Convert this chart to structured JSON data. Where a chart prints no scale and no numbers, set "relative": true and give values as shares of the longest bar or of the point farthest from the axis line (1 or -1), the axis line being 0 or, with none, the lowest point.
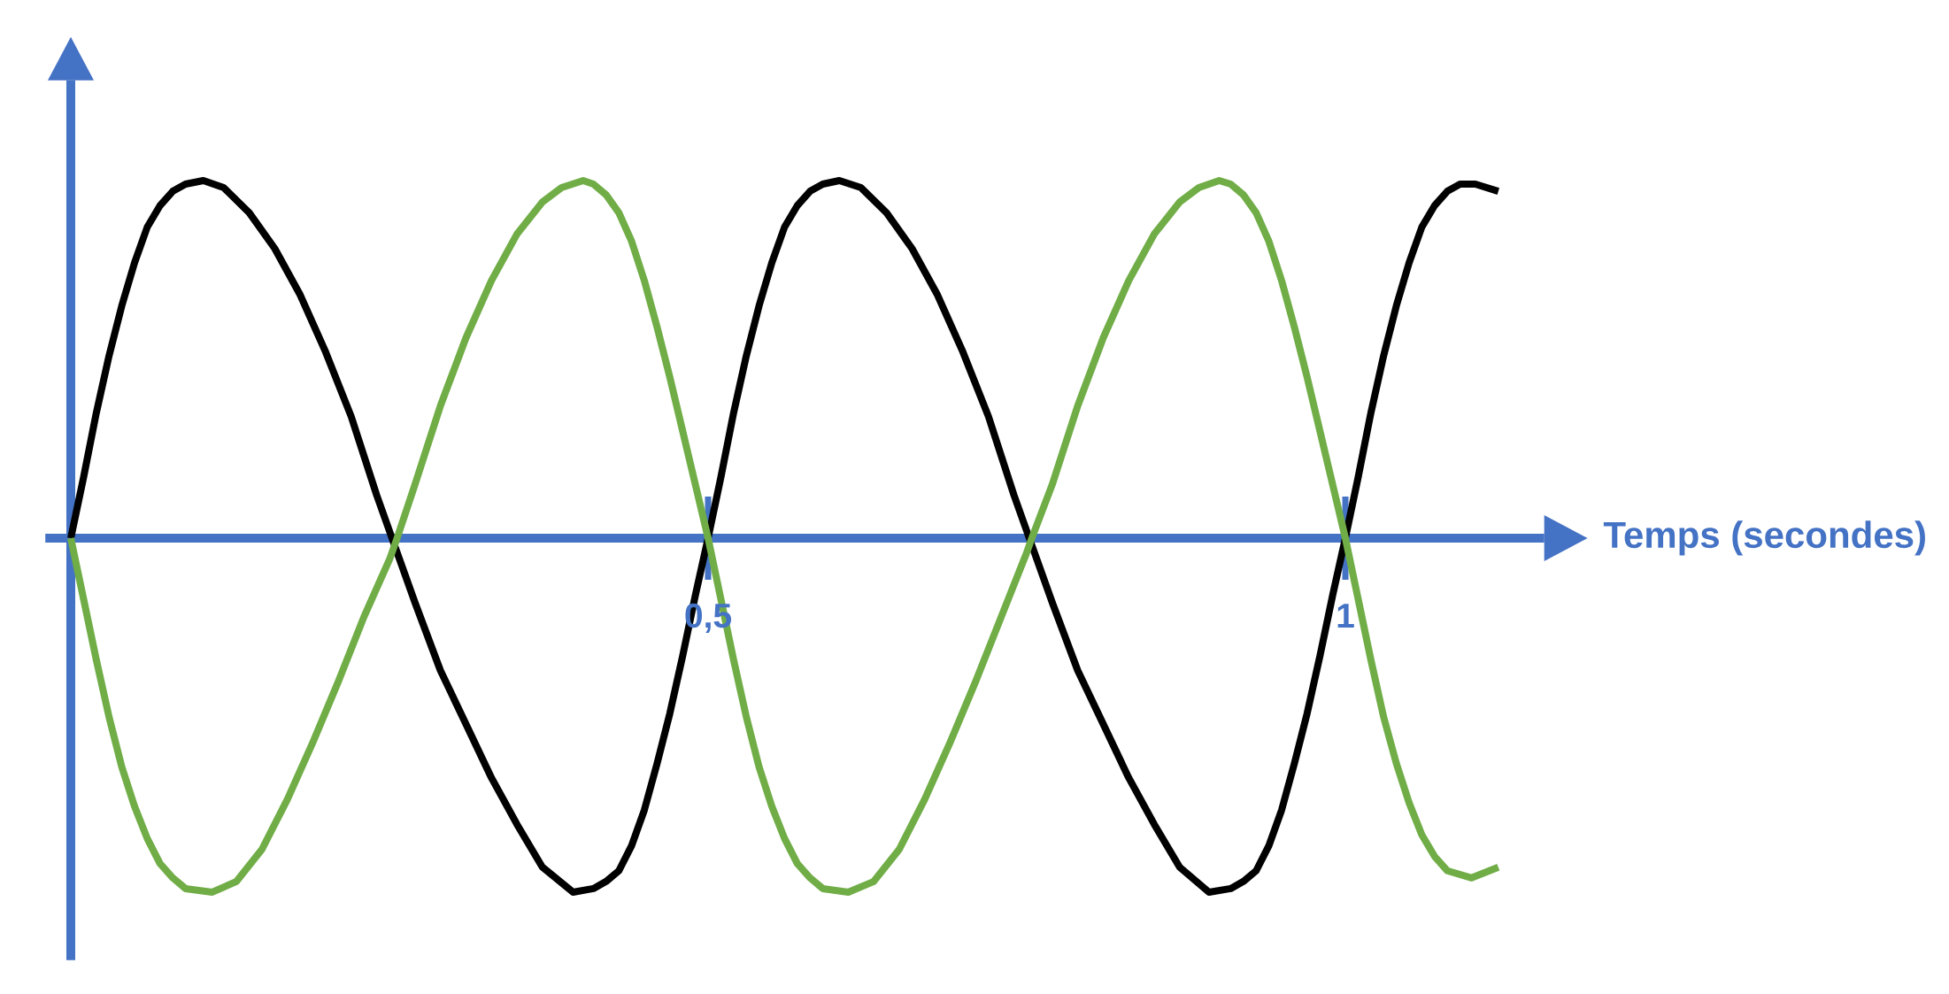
{
  "chart_data": {
    "type": "line",
    "xlabel": "Temps (secondes)",
    "relative": true,
    "line_style": "solid",
    "xlim": [
      -0.02,
      1.156
    ],
    "xticks": [
      {
        "value": 0.5,
        "label": "0,5"
      },
      1
    ],
    "ref_lines": [
      {
        "axis": "x",
        "value": 0,
        "color": "#4472c4"
      }
    ],
    "series": [
      {
        "color": "#000000",
        "x": [
          0,
          0.01,
          0.02,
          0.03,
          0.04,
          0.05,
          0.06,
          0.07,
          0.08,
          0.09,
          0.104,
          0.12,
          0.14,
          0.16,
          0.18,
          0.2,
          0.22,
          0.24,
          0.252,
          0.27,
          0.29,
          0.31,
          0.33,
          0.35,
          0.37,
          0.394,
          0.41,
          0.42,
          0.43,
          0.44,
          0.45,
          0.46,
          0.47,
          0.48,
          0.49,
          0.5,
          0.51,
          0.52,
          0.53,
          0.54,
          0.55,
          0.56,
          0.57,
          0.58,
          0.59,
          0.603,
          0.62,
          0.64,
          0.66,
          0.68,
          0.7,
          0.72,
          0.74,
          0.752,
          0.77,
          0.79,
          0.81,
          0.83,
          0.85,
          0.87,
          0.893,
          0.91,
          0.92,
          0.93,
          0.94,
          0.95,
          0.96,
          0.97,
          0.98,
          0.99,
          1,
          1.01,
          1.02,
          1.03,
          1.04,
          1.05,
          1.06,
          1.07,
          1.08,
          1.09,
          1.102,
          1.12
        ],
        "values": [
          0,
          0.17,
          0.35,
          0.51,
          0.65,
          0.77,
          0.87,
          0.93,
          0.97,
          0.99,
          1,
          0.98,
          0.91,
          0.81,
          0.68,
          0.52,
          0.34,
          0.12,
          0,
          -0.18,
          -0.37,
          -0.52,
          -0.67,
          -0.8,
          -0.92,
          -0.99,
          -0.98,
          -0.96,
          -0.93,
          -0.86,
          -0.76,
          -0.63,
          -0.49,
          -0.33,
          -0.16,
          0,
          0.17,
          0.35,
          0.51,
          0.65,
          0.77,
          0.87,
          0.93,
          0.97,
          0.99,
          1,
          0.98,
          0.91,
          0.81,
          0.68,
          0.52,
          0.34,
          0.12,
          0,
          -0.18,
          -0.37,
          -0.52,
          -0.67,
          -0.8,
          -0.92,
          -0.99,
          -0.98,
          -0.96,
          -0.93,
          -0.86,
          -0.76,
          -0.63,
          -0.49,
          -0.33,
          -0.16,
          0,
          0.17,
          0.35,
          0.51,
          0.65,
          0.77,
          0.87,
          0.93,
          0.97,
          0.99,
          0.99,
          0.97
        ]
      },
      {
        "color": "#70ad47",
        "x": [
          0,
          0.01,
          0.02,
          0.03,
          0.04,
          0.05,
          0.06,
          0.07,
          0.08,
          0.09,
          0.111,
          0.13,
          0.15,
          0.17,
          0.19,
          0.21,
          0.23,
          0.25,
          0.256,
          0.27,
          0.29,
          0.31,
          0.33,
          0.35,
          0.37,
          0.385,
          0.402,
          0.41,
          0.42,
          0.43,
          0.44,
          0.45,
          0.46,
          0.47,
          0.48,
          0.49,
          0.5,
          0.51,
          0.52,
          0.53,
          0.54,
          0.55,
          0.56,
          0.57,
          0.58,
          0.59,
          0.61,
          0.63,
          0.65,
          0.67,
          0.69,
          0.71,
          0.73,
          0.75,
          0.754,
          0.77,
          0.79,
          0.81,
          0.83,
          0.85,
          0.87,
          0.885,
          0.901,
          0.91,
          0.92,
          0.93,
          0.94,
          0.95,
          0.96,
          0.97,
          0.98,
          0.99,
          1,
          1.01,
          1.02,
          1.03,
          1.04,
          1.05,
          1.06,
          1.07,
          1.08,
          1.099,
          1.12
        ],
        "values": [
          0,
          -0.17,
          -0.34,
          -0.5,
          -0.64,
          -0.75,
          -0.84,
          -0.91,
          -0.95,
          -0.98,
          -0.99,
          -0.96,
          -0.87,
          -0.73,
          -0.57,
          -0.4,
          -0.22,
          -0.06,
          0,
          0.15,
          0.37,
          0.56,
          0.72,
          0.85,
          0.94,
          0.98,
          1,
          0.99,
          0.96,
          0.91,
          0.83,
          0.72,
          0.59,
          0.45,
          0.3,
          0.15,
          0,
          -0.17,
          -0.34,
          -0.5,
          -0.64,
          -0.75,
          -0.84,
          -0.91,
          -0.95,
          -0.98,
          -0.99,
          -0.96,
          -0.87,
          -0.73,
          -0.57,
          -0.4,
          -0.22,
          -0.04,
          0,
          0.15,
          0.37,
          0.56,
          0.72,
          0.85,
          0.94,
          0.98,
          1,
          0.99,
          0.96,
          0.91,
          0.83,
          0.72,
          0.59,
          0.45,
          0.3,
          0.15,
          0,
          -0.17,
          -0.34,
          -0.5,
          -0.63,
          -0.74,
          -0.83,
          -0.89,
          -0.93,
          -0.95,
          -0.92
        ]
      }
    ]
  }
}
